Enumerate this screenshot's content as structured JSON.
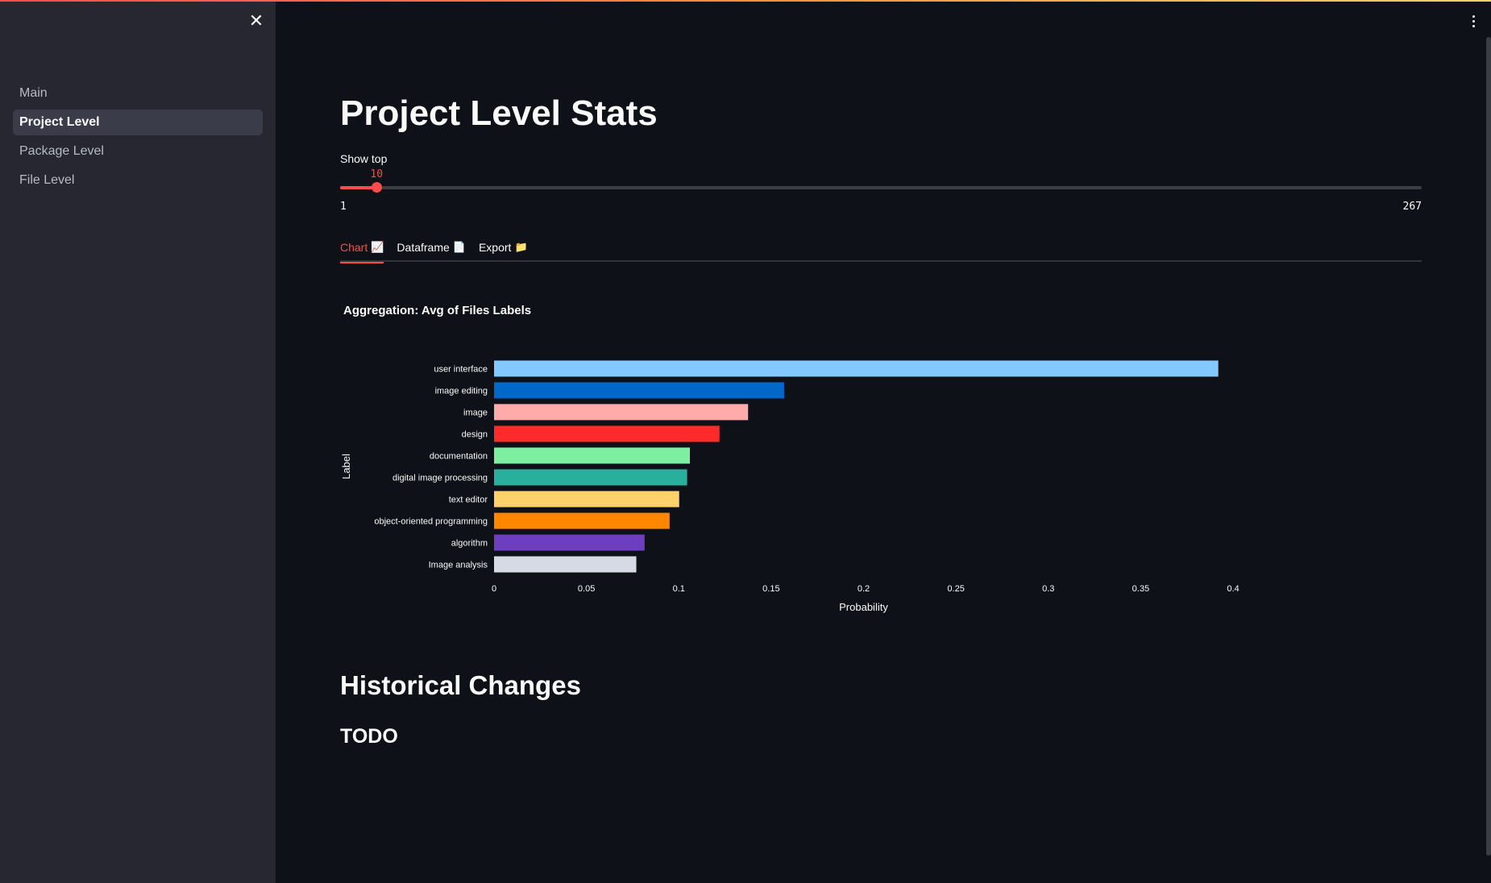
{
  "sidebar": {
    "items": [
      {
        "label": "Main",
        "active": false
      },
      {
        "label": "Project Level",
        "active": true
      },
      {
        "label": "Package Level",
        "active": false
      },
      {
        "label": "File Level",
        "active": false
      }
    ]
  },
  "page": {
    "title": "Project Level Stats"
  },
  "slider": {
    "label": "Show top",
    "value": "10",
    "min": "1",
    "max": "267",
    "fraction": 0.0337
  },
  "tabs": [
    {
      "label": "Chart",
      "icon": "📈",
      "active": true
    },
    {
      "label": "Dataframe",
      "icon": "📄",
      "active": false
    },
    {
      "label": "Export",
      "icon": "📁",
      "active": false
    }
  ],
  "chart_title": "Aggregation: Avg of Files Labels",
  "chart_data": {
    "type": "bar",
    "orientation": "horizontal",
    "ylabel": "Label",
    "xlabel": "Probability",
    "xlim": [
      0,
      0.4
    ],
    "xticks": [
      "0",
      "0.05",
      "0.1",
      "0.15",
      "0.2",
      "0.25",
      "0.3",
      "0.35",
      "0.4"
    ],
    "categories": [
      "user interface",
      "image editing",
      "image",
      "design",
      "documentation",
      "digital image processing",
      "text editor",
      "object-oriented programming",
      "algorithm",
      "Image analysis"
    ],
    "values": [
      0.392,
      0.157,
      0.1375,
      0.122,
      0.106,
      0.1045,
      0.1002,
      0.095,
      0.0815,
      0.077
    ],
    "colors": [
      "#83c9ff",
      "#0068c9",
      "#ffabab",
      "#ff2b2b",
      "#7defa1",
      "#29b09d",
      "#ffd16a",
      "#ff8700",
      "#6d3fc0",
      "#d5dae5"
    ]
  },
  "section": {
    "title": "Historical Changes",
    "subtitle": "TODO"
  },
  "colors": {
    "accent": "#ff4b4b",
    "background": "#0e1117",
    "sidebar": "#262730"
  }
}
